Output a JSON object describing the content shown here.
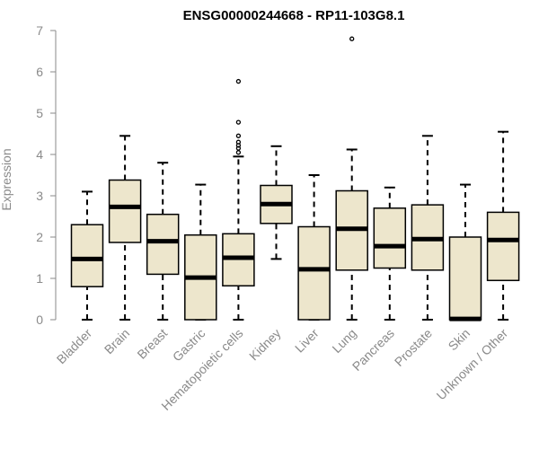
{
  "chart_data": {
    "type": "boxplot",
    "title": "ENSG00000244668 - RP11-103G8.1",
    "ylabel": "Expression",
    "xlabel": "",
    "ylim": [
      0,
      7
    ],
    "yticks": [
      0,
      1,
      2,
      3,
      4,
      5,
      6,
      7
    ],
    "grid": false,
    "box_fill": "#ede6cc",
    "stroke": "#000000",
    "categories": [
      "Bladder",
      "Brain",
      "Breast",
      "Gastric",
      "Hematopoietic cells",
      "Kidney",
      "Liver",
      "Lung",
      "Pancreas",
      "Prostate",
      "Skin",
      "Unknown / Other"
    ],
    "boxes": [
      {
        "min": 0,
        "q1": 0.8,
        "median": 1.47,
        "q3": 2.3,
        "max": 3.1,
        "outliers": []
      },
      {
        "min": 0,
        "q1": 1.87,
        "median": 2.73,
        "q3": 3.38,
        "max": 4.45,
        "outliers": []
      },
      {
        "min": 0,
        "q1": 1.1,
        "median": 1.9,
        "q3": 2.55,
        "max": 3.8,
        "outliers": []
      },
      {
        "min": 0,
        "q1": 0,
        "median": 1.02,
        "q3": 2.05,
        "max": 3.27,
        "outliers": []
      },
      {
        "min": 0,
        "q1": 0.82,
        "median": 1.5,
        "q3": 2.08,
        "max": 3.95,
        "outliers": [
          4.05,
          4.15,
          4.22,
          4.3,
          4.45,
          4.78,
          5.77
        ]
      },
      {
        "min": 1.47,
        "q1": 2.33,
        "median": 2.8,
        "q3": 3.25,
        "max": 4.2,
        "outliers": []
      },
      {
        "min": 0,
        "q1": 0,
        "median": 1.22,
        "q3": 2.25,
        "max": 3.5,
        "outliers": []
      },
      {
        "min": 0,
        "q1": 1.2,
        "median": 2.2,
        "q3": 3.12,
        "max": 4.12,
        "outliers": [
          6.8
        ]
      },
      {
        "min": 0,
        "q1": 1.25,
        "median": 1.78,
        "q3": 2.7,
        "max": 3.2,
        "outliers": []
      },
      {
        "min": 0,
        "q1": 1.2,
        "median": 1.95,
        "q3": 2.78,
        "max": 4.45,
        "outliers": []
      },
      {
        "min": 0,
        "q1": 0,
        "median": 0.02,
        "q3": 2.0,
        "max": 3.27,
        "outliers": []
      },
      {
        "min": 0,
        "q1": 0.95,
        "median": 1.93,
        "q3": 2.6,
        "max": 4.55,
        "outliers": []
      }
    ]
  }
}
